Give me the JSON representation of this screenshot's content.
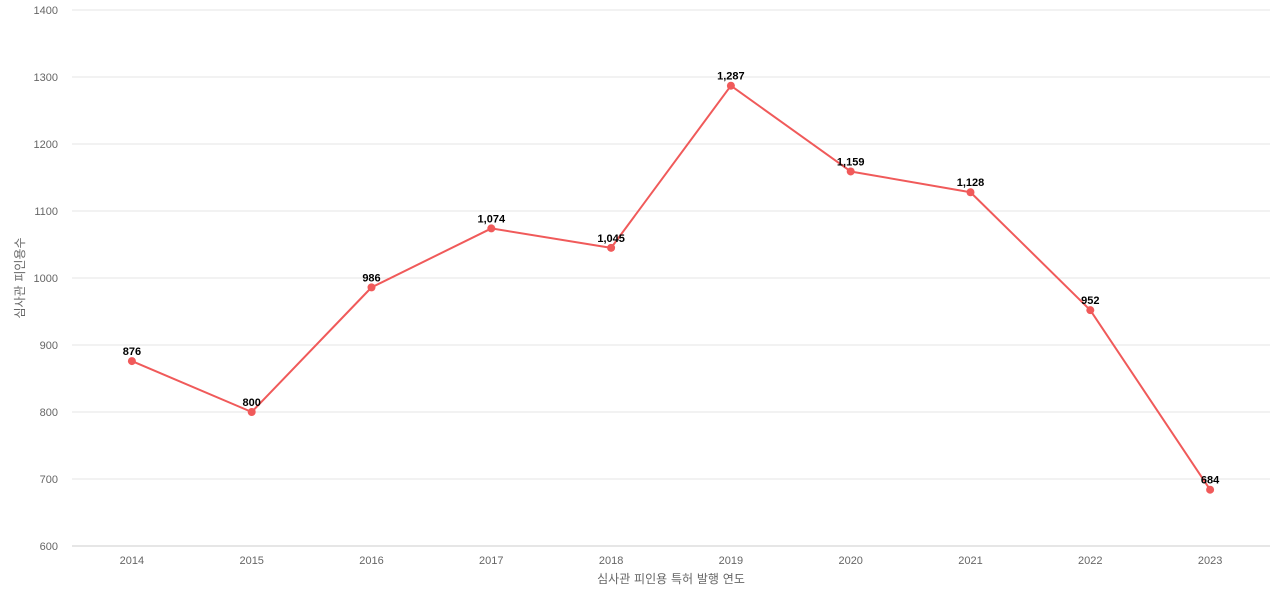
{
  "chart_data": {
    "type": "line",
    "title": "",
    "xlabel": "심사관 피인용 특허 발행 연도",
    "ylabel": "심사관 피인용수",
    "categories": [
      "2014",
      "2015",
      "2016",
      "2017",
      "2018",
      "2019",
      "2020",
      "2021",
      "2022",
      "2023"
    ],
    "series": [
      {
        "values": [
          876,
          800,
          986,
          1074,
          1045,
          1287,
          1159,
          1128,
          952,
          684
        ],
        "data_labels": [
          "876",
          "800",
          "986",
          "1,074",
          "1,045",
          "1,287",
          "1,159",
          "1,128",
          "952",
          "684"
        ],
        "color": "#f05a5a"
      }
    ],
    "ylim": [
      600,
      1400
    ],
    "yticks": [
      "600",
      "700",
      "800",
      "900",
      "1000",
      "1100",
      "1200",
      "1300",
      "1400"
    ],
    "grid": true,
    "legend": "none"
  }
}
